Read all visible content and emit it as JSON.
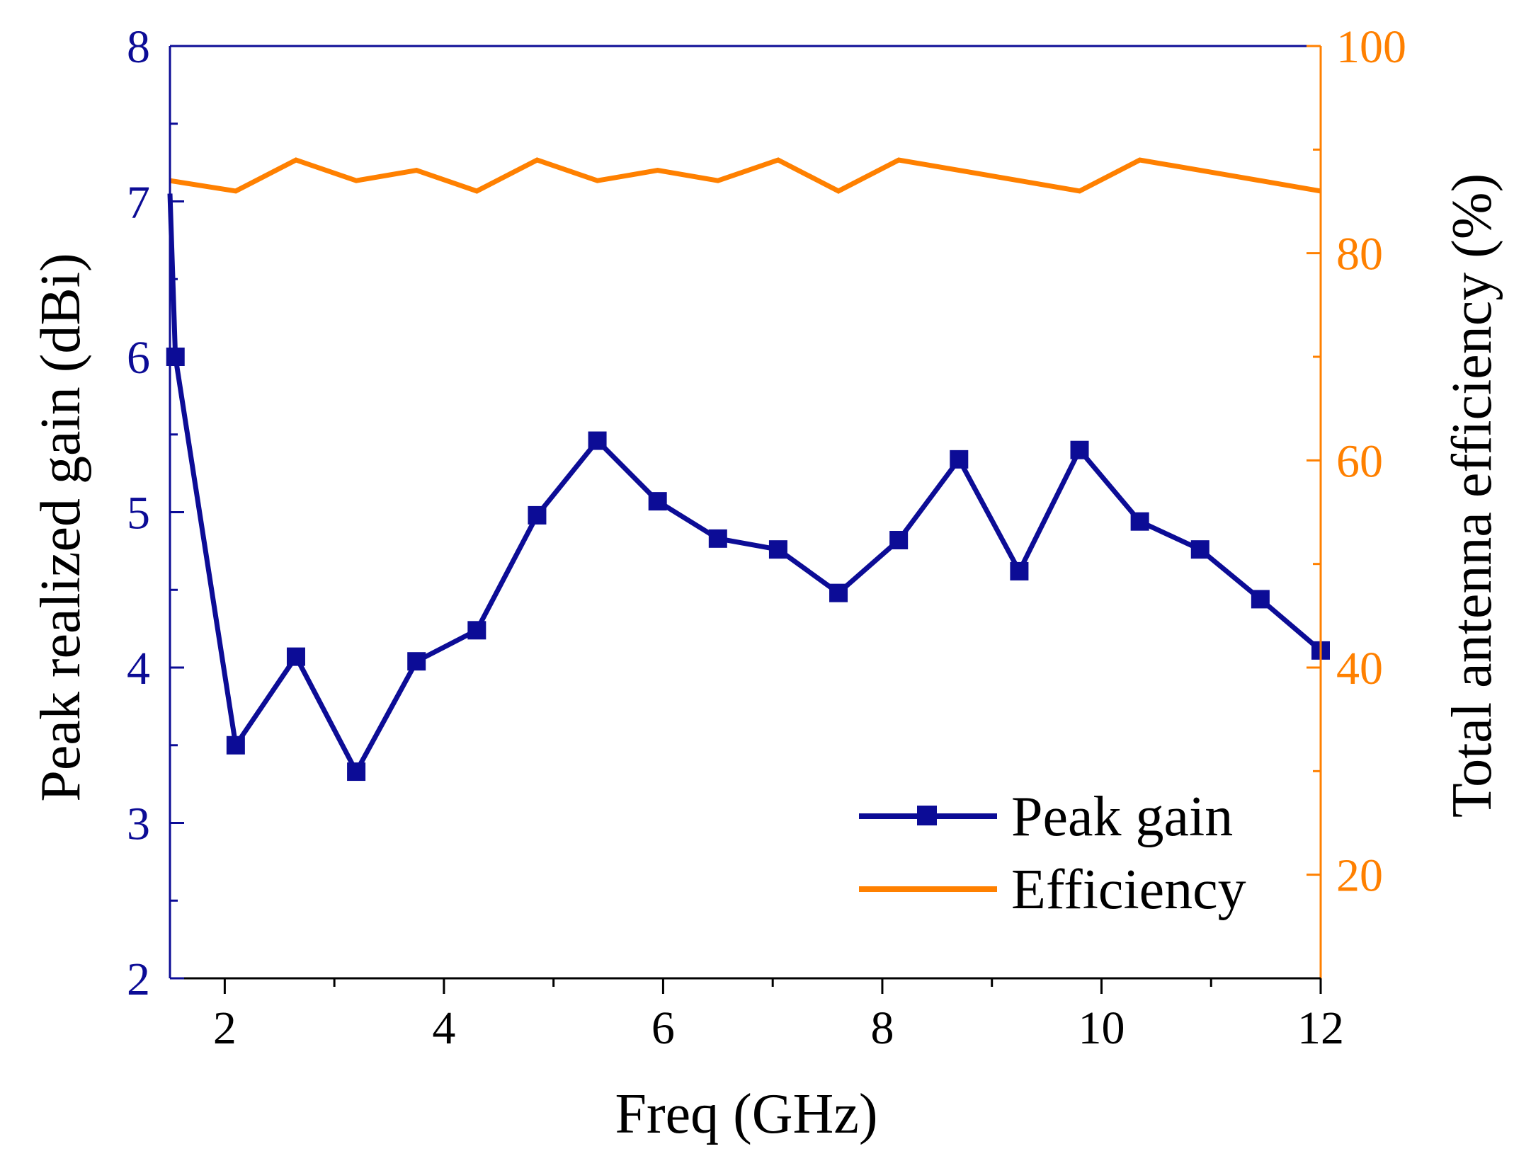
{
  "chart_data": {
    "type": "line",
    "title": "",
    "xlabel": "Freq (GHz)",
    "ylabel": "Peak realized gain (dBi)",
    "y2label": "Total antenna efficiency (%)",
    "xlim": [
      1.5,
      12
    ],
    "ylim": [
      2,
      8
    ],
    "y2lim": [
      10,
      100
    ],
    "x_ticks": [
      2,
      4,
      6,
      8,
      10,
      12
    ],
    "x_tick_labels": [
      "2",
      "4",
      "6",
      "8",
      "10",
      "12"
    ],
    "y_ticks": [
      2,
      3,
      4,
      5,
      6,
      7,
      8
    ],
    "y_tick_labels": [
      "2",
      "3",
      "4",
      "5",
      "6",
      "7",
      "8"
    ],
    "y2_ticks": [
      20,
      40,
      60,
      80,
      100
    ],
    "y2_tick_labels": [
      "20",
      "40",
      "60",
      "80",
      "100"
    ],
    "grid": false,
    "legend_position": "bottom-right",
    "colors": {
      "gain": "#0c0c96",
      "efficiency": "#ff8000"
    },
    "series": [
      {
        "name": "Peak gain",
        "axis": "left",
        "marker": "square",
        "x": [
          1.5,
          1.55,
          2.1,
          2.65,
          3.2,
          3.75,
          4.3,
          4.85,
          5.4,
          5.95,
          6.5,
          7.05,
          7.6,
          8.15,
          8.7,
          9.25,
          9.8,
          10.35,
          10.9,
          11.45,
          12.0
        ],
        "values": [
          7.05,
          6.0,
          3.5,
          4.07,
          3.33,
          4.04,
          4.24,
          4.98,
          5.46,
          5.07,
          4.83,
          4.76,
          4.48,
          4.82,
          5.34,
          4.62,
          5.4,
          4.94,
          4.76,
          4.44,
          4.11
        ]
      },
      {
        "name": "Efficiency",
        "axis": "right",
        "marker": "none",
        "x": [
          1.5,
          2.1,
          2.65,
          3.2,
          3.75,
          4.3,
          4.85,
          5.4,
          5.95,
          6.5,
          7.05,
          7.6,
          8.15,
          8.7,
          9.25,
          9.8,
          10.35,
          10.9,
          11.45,
          12.0
        ],
        "values": [
          87,
          86,
          89,
          87,
          88,
          86,
          89,
          87,
          88,
          87,
          89,
          86,
          89,
          88,
          87,
          86,
          89,
          88,
          87,
          86
        ]
      }
    ]
  }
}
